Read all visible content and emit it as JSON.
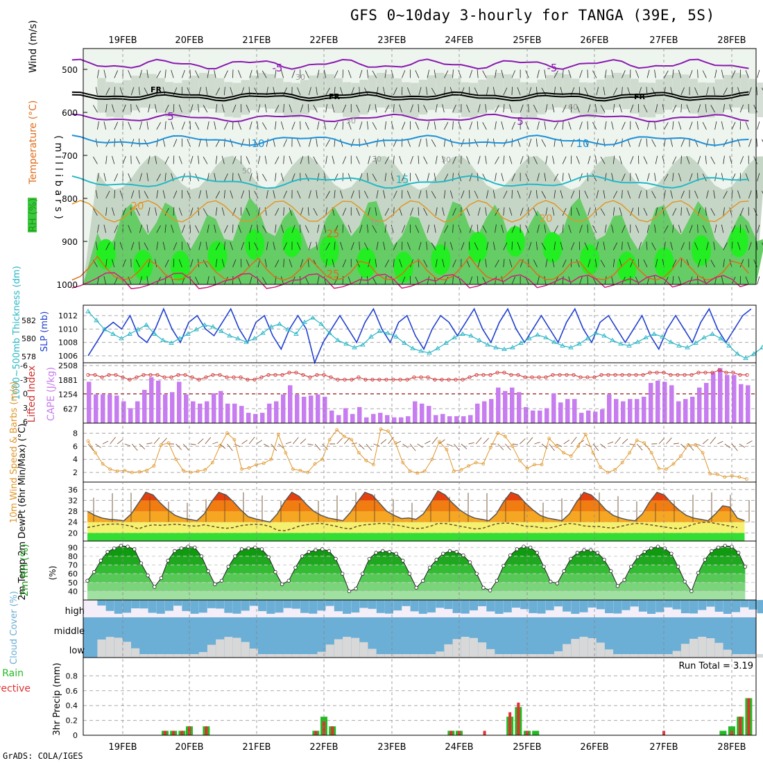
{
  "title": "GFS 0~10day 3-hourly for TANGA (39E, 5S)",
  "credit": "GrADS: COLA/IGES",
  "dates": [
    "19FEB",
    "20FEB",
    "21FEB",
    "22FEB",
    "23FEB",
    "24FEB",
    "25FEB",
    "26FEB",
    "27FEB",
    "28FEB"
  ],
  "colors": {
    "rh_green": "#3cc83c",
    "cloud_blue": "#6baed6",
    "cape_purple": "#c77cf0",
    "slp_blue": "#1f3fd0",
    "thick_cyan": "#29b6c6",
    "li_red": "#d03030",
    "wind_orange": "#e0962a",
    "rain_green": "#22bb22",
    "conv_red": "#e03030"
  },
  "chart_data": [
    {
      "type": "heatmap",
      "panel": "upper-air",
      "ylabel": "(millibars)",
      "legend_labels": [
        "Wind (m/s)",
        "Temperature (°C)",
        "RH (%)"
      ],
      "yticks": [
        500,
        600,
        700,
        800,
        900,
        1000
      ],
      "contour_labels": [
        "-5",
        "-5",
        "FR",
        "FR",
        "FR",
        "5",
        "5",
        "10",
        "10",
        "15",
        "20",
        "20",
        "25",
        "25",
        "30",
        "30",
        "30",
        "50",
        "50",
        "60",
        "70"
      ]
    },
    {
      "type": "line",
      "panel": "slp-thickness",
      "ylabel_left": "1000~500mb Thickness (dm)",
      "ylabel_right": "SLP (mb)",
      "yticks_left": [
        578,
        580,
        582
      ],
      "yticks_right": [
        1006,
        1008,
        1010,
        1012
      ],
      "series": [
        {
          "name": "SLP (mb)",
          "values": [
            1006,
            1008,
            1010,
            1011,
            1010,
            1012,
            1009,
            1008,
            1010,
            1013,
            1010,
            1008,
            1011,
            1012,
            1010,
            1009,
            1011,
            1013,
            1010,
            1008,
            1011,
            1012,
            1009,
            1007,
            1010,
            1012,
            1010,
            1005,
            1008,
            1010,
            1012,
            1010,
            1008,
            1011,
            1013,
            1010,
            1008,
            1011,
            1012,
            1009,
            1007,
            1010,
            1012,
            1011,
            1009,
            1011,
            1013,
            1010,
            1008,
            1011,
            1013,
            1010,
            1008,
            1010,
            1012,
            1010,
            1008,
            1011,
            1013,
            1010,
            1008,
            1011,
            1012,
            1010,
            1008,
            1010,
            1012,
            1009,
            1007,
            1010,
            1012,
            1010,
            1008,
            1011,
            1013,
            1010,
            1008,
            1010,
            1012,
            1013
          ]
        },
        {
          "name": "1000~500mb Thickness (dm)",
          "values": [
            583,
            582,
            581,
            580.5,
            580,
            580.5,
            581,
            581.5,
            580.5,
            579.8,
            579.5,
            580,
            580.5,
            581,
            581.5,
            581.3,
            580.8,
            580.3,
            580,
            579.6,
            580,
            580.6,
            581.3,
            581.6,
            581,
            580.5,
            581.8,
            582.3,
            581.6,
            580.6,
            579.8,
            579.4,
            579,
            579.3,
            580.2,
            580.8,
            580.6,
            580.2,
            579.5,
            578.9,
            578.6,
            578.4,
            578.9,
            579.5,
            580.1,
            580.5,
            580.3,
            579.8,
            579.3,
            579,
            578.8,
            579,
            579.5,
            580,
            580.4,
            580.1,
            579.6,
            579.2,
            579,
            579.4,
            580,
            580.6,
            580.3,
            579.8,
            579.4,
            579.2,
            579.6,
            580.1,
            580.5,
            580.2,
            579.6,
            579.2,
            579,
            579.5,
            580.1,
            580.5,
            580,
            579.2,
            578.3,
            577.8,
            578.3,
            579
          ]
        }
      ]
    },
    {
      "type": "bar",
      "panel": "cape-li",
      "ylabel_left": "Lifted Index",
      "ylabel_right": "CAPE (J/kg)",
      "yticks_left": [
        "-6",
        "-3",
        "0",
        "3",
        "6"
      ],
      "yticks_right": [
        627,
        1254,
        1881,
        2508
      ],
      "series": [
        {
          "name": "CAPE (J/kg)",
          "values": [
            1800,
            1250,
            1250,
            1250,
            1200,
            950,
            650,
            950,
            1450,
            2000,
            1850,
            1250,
            1350,
            1800,
            1250,
            950,
            850,
            950,
            1300,
            1400,
            850,
            850,
            750,
            450,
            400,
            450,
            850,
            950,
            1250,
            1650,
            1250,
            1150,
            1200,
            1250,
            1150,
            550,
            350,
            650,
            400,
            700,
            250,
            400,
            450,
            350,
            250,
            250,
            300,
            950,
            850,
            750,
            350,
            400,
            300,
            300,
            300,
            350,
            850,
            950,
            1050,
            1550,
            1400,
            1550,
            1350,
            700,
            550,
            550,
            650,
            1300,
            900,
            1050,
            1050,
            450,
            550,
            500,
            600,
            1250,
            1050,
            950,
            1050,
            1050,
            1150,
            1750,
            1850,
            1800,
            1650,
            950,
            1050,
            1150,
            1550,
            1750,
            2200,
            2400,
            2100,
            2100,
            1700,
            1650
          ]
        },
        {
          "name": "Lifted Index",
          "values": [
            -4,
            -4,
            -3.5,
            -4,
            -4,
            -3.5,
            -3,
            -3.5,
            -4,
            -4,
            -4,
            -3.5,
            -3.5,
            -4,
            -4,
            -3.5,
            -3,
            -3.5,
            -4,
            -4,
            -3.5,
            -3.5,
            -3.5,
            -3,
            -3,
            -3.5,
            -4,
            -4,
            -4,
            -4.5,
            -4.5,
            -4,
            -3.5,
            -4,
            -4,
            -3.5,
            -3,
            -3,
            -3,
            -3.5,
            -3,
            -3,
            -3,
            -3,
            -3,
            -3,
            -3,
            -3.5,
            -3.5,
            -3.5,
            -3,
            -3,
            -3,
            -3,
            -3,
            -3.5,
            -4,
            -4,
            -4,
            -4.5,
            -4.5,
            -4,
            -4,
            -3.5,
            -3.5,
            -3.5,
            -3.5,
            -4,
            -4,
            -4,
            -4,
            -3.5,
            -3.5,
            -3.5,
            -4,
            -4,
            -4,
            -4,
            -4,
            -4,
            -4,
            -4.5,
            -4.5,
            -4.5,
            -4,
            -4,
            -4,
            -4,
            -4.5,
            -4.5,
            -4.5,
            -5,
            -4.5,
            -4.5,
            -4,
            -4
          ]
        }
      ]
    },
    {
      "type": "line",
      "panel": "wind-10m",
      "ylabel": "10m Wind Speed & Barbs (m/s)",
      "yticks": [
        2,
        4,
        6,
        8
      ],
      "series": [
        {
          "name": "10m Wind Speed (m/s)",
          "values": [
            6.8,
            5,
            3.3,
            2.5,
            2.2,
            2.3,
            2,
            2.1,
            2.3,
            3,
            6.2,
            6.5,
            4,
            2.3,
            2,
            2.2,
            2.4,
            3.5,
            6,
            8,
            7,
            2.5,
            2.7,
            3.2,
            3.4,
            4,
            7.8,
            5,
            2.5,
            2.3,
            2,
            3.3,
            4,
            7,
            8.5,
            7.5,
            7,
            5,
            3.8,
            3.2,
            8.6,
            8.3,
            6.5,
            3.5,
            2.2,
            1.9,
            2.2,
            4,
            6.7,
            5.5,
            2.2,
            2.4,
            3,
            3.5,
            3.3,
            5.8,
            8,
            7.5,
            6,
            3.8,
            2.6,
            3.2,
            3.2,
            7.2,
            6,
            5,
            4.5,
            6,
            7.8,
            5,
            2.8,
            2,
            2.4,
            3.5,
            5,
            6.9,
            6.5,
            5,
            2.6,
            2.5,
            3.3,
            4.5,
            6.2,
            6.2,
            5,
            1.8,
            1.7,
            1.3,
            1.5,
            1.3,
            1
          ]
        }
      ]
    },
    {
      "type": "area",
      "panel": "temperature-2m",
      "ylabel": "2m Temp 2m DewPt (6hr Min/Max) (°C)",
      "yticks": [
        20,
        24,
        28,
        32,
        36
      ],
      "series": [
        {
          "name": "2m Temp",
          "values": [
            28,
            26.5,
            25.5,
            25,
            24.8,
            24.5,
            27,
            31,
            35,
            34,
            31,
            28.5,
            26.5,
            25.5,
            25,
            24.5,
            27,
            31.5,
            35,
            34,
            31.5,
            28.5,
            26,
            25.2,
            24.6,
            24,
            27,
            31.5,
            35,
            33.5,
            30.5,
            28,
            26.5,
            25.5,
            25,
            24.5,
            27.5,
            31.5,
            35,
            34,
            31,
            28,
            26.5,
            25.3,
            25.5,
            25,
            27,
            31,
            35.5,
            34,
            31,
            28.5,
            26.7,
            25.5,
            25,
            24.5,
            27,
            31.5,
            35,
            34,
            31,
            28.5,
            26.5,
            25.5,
            25,
            24.5,
            27,
            31.5,
            35,
            34,
            31.5,
            28.5,
            26.5,
            25.5,
            24.8,
            24.5,
            27,
            31.5,
            35,
            34,
            31,
            28.5,
            26.5,
            25.5,
            25,
            24.5,
            27,
            30,
            29.5,
            25.5,
            24.5
          ]
        },
        {
          "name": "2m DewPt",
          "values": [
            22,
            22.5,
            23,
            23.2,
            23.3,
            23,
            22.5,
            21.5,
            22.5,
            23,
            22.8,
            23,
            23.2,
            23,
            22.6,
            22.5,
            23,
            22.5,
            22,
            21.7,
            22,
            22.7,
            23,
            23.2,
            23,
            22.4,
            21,
            20.8,
            21.5,
            22.5,
            23,
            23.4,
            23.5,
            23,
            22.5,
            21.8,
            21.5,
            22.5,
            23,
            23.2,
            23.5,
            23.4,
            23,
            22.6,
            22,
            21.6,
            21.8,
            22.5,
            23.5,
            23.5,
            23,
            22.5,
            22,
            21.5,
            21.6,
            22.5,
            23.4,
            23.6,
            23.6,
            23,
            22.5,
            22.4,
            22,
            21.7,
            22.2,
            23,
            23.5,
            23.2,
            22.6,
            22.4,
            22.4,
            22,
            21.8,
            22.4,
            23,
            23.5,
            23.4,
            23,
            22.6,
            22.2,
            21.8,
            21.6,
            22.2,
            23.2,
            23.8,
            24,
            23.5,
            23,
            22.5,
            22
          ]
        }
      ]
    },
    {
      "type": "area",
      "panel": "rh-2m",
      "ylabel": "2m RH (%)",
      "yticks": [
        40,
        50,
        60,
        70,
        80,
        90
      ],
      "series": [
        {
          "name": "2m RH (%)",
          "values": [
            52,
            62,
            75,
            85,
            89,
            92,
            91,
            88,
            72,
            58,
            45,
            55,
            75,
            86,
            89,
            91,
            90,
            80,
            63,
            48,
            52,
            68,
            80,
            88,
            89,
            90,
            88,
            79,
            62,
            48,
            52,
            67,
            80,
            85,
            87,
            88,
            86,
            77,
            60,
            40,
            43,
            60,
            77,
            84,
            86,
            85,
            83,
            75,
            60,
            44,
            52,
            67,
            76,
            83,
            86,
            85,
            81,
            73,
            60,
            44,
            41,
            52,
            69,
            81,
            88,
            91,
            90,
            84,
            68,
            51,
            49,
            63,
            77,
            84,
            87,
            87,
            84,
            76,
            63,
            46,
            53,
            68,
            79,
            85,
            89,
            91,
            89,
            83,
            68,
            51,
            40,
            61,
            76,
            86,
            90,
            92,
            91,
            84,
            68
          ]
        }
      ]
    },
    {
      "type": "area",
      "panel": "cloud-cover",
      "ylabel": "Cloud Cover (%)",
      "categories": [
        "high",
        "middle",
        "low"
      ]
    },
    {
      "type": "bar",
      "panel": "precip",
      "ylabel": "3hr Precip (mm)",
      "legend_labels": [
        "Total / Rain",
        "Convective"
      ],
      "annotation": "Run Total = 3.19",
      "yticks": [
        0,
        0.2,
        0.4,
        0.6,
        0.8
      ],
      "series": [
        {
          "name": "Total / Rain",
          "values": [
            {
              "x": "19FEB 15Z",
              "y": 0.06
            },
            {
              "x": "19FEB 18Z",
              "y": 0.06
            },
            {
              "x": "19FEB 21Z",
              "y": 0.06
            },
            {
              "x": "20FEB 00Z",
              "y": 0.12
            },
            {
              "x": "20FEB 06Z",
              "y": 0.12
            },
            {
              "x": "21FEB 21Z",
              "y": 0.06
            },
            {
              "x": "22FEB 00Z",
              "y": 0.25
            },
            {
              "x": "22FEB 03Z",
              "y": 0.12
            },
            {
              "x": "23FEB 21Z",
              "y": 0.06
            },
            {
              "x": "24FEB 00Z",
              "y": 0.06
            },
            {
              "x": "24FEB 18Z",
              "y": 0.25
            },
            {
              "x": "24FEB 21Z",
              "y": 0.38
            },
            {
              "x": "25FEB 00Z",
              "y": 0.06
            },
            {
              "x": "25FEB 03Z",
              "y": 0.06
            },
            {
              "x": "27FEB 21Z",
              "y": 0.06
            },
            {
              "x": "28FEB 00Z",
              "y": 0.12
            },
            {
              "x": "28FEB 03Z",
              "y": 0.25
            },
            {
              "x": "28FEB 06Z",
              "y": 0.5
            }
          ]
        },
        {
          "name": "Convective",
          "values": [
            {
              "x": "19FEB 15Z",
              "y": 0.06
            },
            {
              "x": "19FEB 18Z",
              "y": 0.06
            },
            {
              "x": "19FEB 21Z",
              "y": 0.06
            },
            {
              "x": "20FEB 00Z",
              "y": 0.12
            },
            {
              "x": "20FEB 06Z",
              "y": 0.12
            },
            {
              "x": "21FEB 21Z",
              "y": 0.06
            },
            {
              "x": "22FEB 00Z",
              "y": 0.19
            },
            {
              "x": "22FEB 03Z",
              "y": 0.12
            },
            {
              "x": "23FEB 21Z",
              "y": 0.06
            },
            {
              "x": "24FEB 00Z",
              "y": 0.06
            },
            {
              "x": "24FEB 09Z",
              "y": 0.06
            },
            {
              "x": "24FEB 18Z",
              "y": 0.31
            },
            {
              "x": "24FEB 21Z",
              "y": 0.44
            },
            {
              "x": "25FEB 00Z",
              "y": 0.06
            },
            {
              "x": "27FEB 00Z",
              "y": 0.06
            },
            {
              "x": "28FEB 00Z",
              "y": 0.06
            },
            {
              "x": "28FEB 03Z",
              "y": 0.25
            },
            {
              "x": "28FEB 06Z",
              "y": 0.5
            }
          ]
        }
      ]
    }
  ]
}
